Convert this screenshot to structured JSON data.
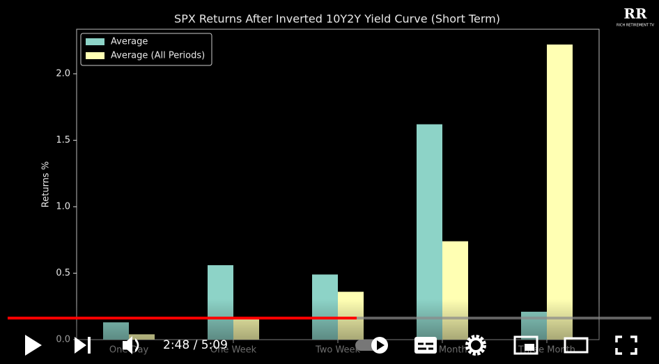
{
  "chart_data": {
    "type": "bar",
    "title": "SPX Returns After Inverted 10Y2Y Yield Curve (Short Term)",
    "ylabel": "Returns %",
    "categories": [
      "One Day",
      "One Week",
      "Two Week",
      "One Month",
      "Three Month"
    ],
    "series": [
      {
        "name": "Average",
        "color": "#8dd3c7",
        "values": [
          0.13,
          0.56,
          0.49,
          1.62,
          0.21
        ]
      },
      {
        "name": "Average (All Periods)",
        "color": "#ffffb3",
        "values": [
          0.04,
          0.17,
          0.36,
          0.74,
          2.22
        ]
      }
    ],
    "ylim": [
      0,
      2.335
    ],
    "yticks": [
      {
        "value": 0,
        "label": "0.0"
      },
      0.5,
      {
        "value": 1,
        "label": "1.0"
      },
      1.5,
      {
        "value": 2,
        "label": "2.0"
      }
    ],
    "legend": "upper left"
  },
  "logo": {
    "mark": "RR",
    "text": "RICH RETIREMENT TV"
  },
  "player": {
    "time": "2:48 / 5:09"
  }
}
